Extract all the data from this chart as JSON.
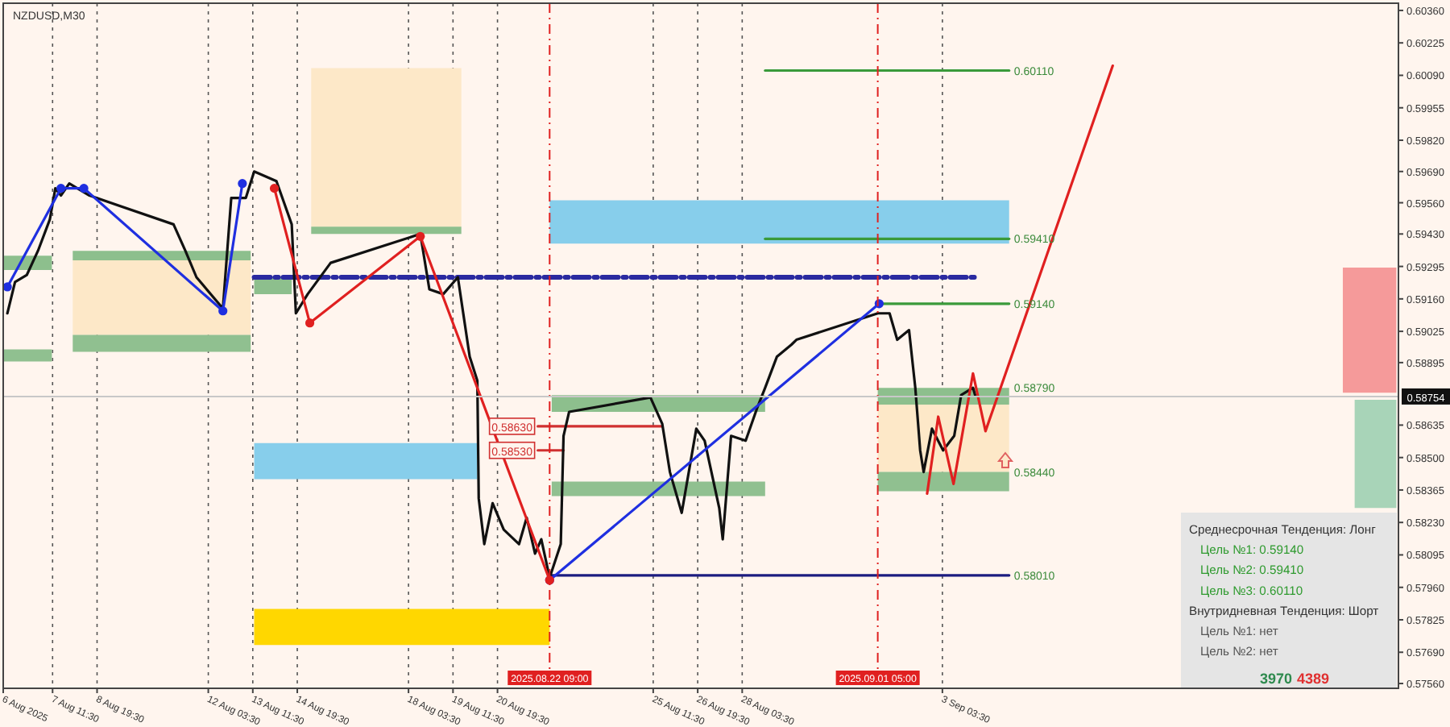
{
  "chart_data": {
    "type": "line",
    "title": "NZDUSD,M30",
    "xlim": [
      "2025-08-06T00:00",
      "2025-09-16T19:30"
    ],
    "ylim": [
      0.5754,
      0.6039
    ],
    "xticks": [
      {
        "value": "2025-08-06T00:00",
        "label": "6 Aug 2025"
      },
      {
        "value": "2025-08-07T11:30",
        "label": "7 Aug 11:30"
      },
      {
        "value": "2025-08-08T19:30",
        "label": "8 Aug 19:30"
      },
      {
        "value": "2025-08-12T03:30",
        "label": "12 Aug 03:30"
      },
      {
        "value": "2025-08-13T11:30",
        "label": "13 Aug 11:30"
      },
      {
        "value": "2025-08-14T19:30",
        "label": "14 Aug 19:30"
      },
      {
        "value": "2025-08-18T03:30",
        "label": "18 Aug 03:30"
      },
      {
        "value": "2025-08-19T11:30",
        "label": "19 Aug 11:30"
      },
      {
        "value": "2025-08-20T19:30",
        "label": "20 Aug 19:30"
      },
      {
        "value": "2025-08-25T11:30",
        "label": "25 Aug 11:30"
      },
      {
        "value": "2025-08-26T19:30",
        "label": "26 Aug 19:30"
      },
      {
        "value": "2025-08-28T03:30",
        "label": "28 Aug 03:30"
      },
      {
        "value": "2025-09-03T03:30",
        "label": "3 Sep 03:30"
      }
    ],
    "yticks": [
      {
        "value": 0.6036,
        "label": "0.60360"
      },
      {
        "value": 0.60225,
        "label": "0.60225"
      },
      {
        "value": 0.6009,
        "label": "0.60090"
      },
      {
        "value": 0.59955,
        "label": "0.59955"
      },
      {
        "value": 0.5982,
        "label": "0.59820"
      },
      {
        "value": 0.5969,
        "label": "0.59690"
      },
      {
        "value": 0.5956,
        "label": "0.59560"
      },
      {
        "value": 0.5943,
        "label": "0.59430"
      },
      {
        "value": 0.59295,
        "label": "0.59295"
      },
      {
        "value": 0.5916,
        "label": "0.59160"
      },
      {
        "value": 0.59025,
        "label": "0.59025"
      },
      {
        "value": 0.58895,
        "label": "0.58895"
      },
      {
        "value": 0.58635,
        "label": "0.58635"
      },
      {
        "value": 0.585,
        "label": "0.58500"
      },
      {
        "value": 0.58365,
        "label": "0.58365"
      },
      {
        "value": 0.5823,
        "label": "0.58230"
      },
      {
        "value": 0.58095,
        "label": "0.58095"
      },
      {
        "value": 0.5796,
        "label": "0.57960"
      },
      {
        "value": 0.57825,
        "label": "0.57825"
      },
      {
        "value": 0.5769,
        "label": "0.57690"
      },
      {
        "value": 0.5756,
        "label": "0.57560"
      }
    ],
    "grid": "x",
    "series": [
      {
        "type": "area",
        "color": "#fde8c8",
        "x": [
          "2025-08-08T02:00",
          "2025-08-13T10:00"
        ],
        "values": [
          null,
          null
        ],
        "lower": [
          0.5901,
          0.5901
        ],
        "upper": [
          0.5932,
          0.5932
        ]
      },
      {
        "type": "area",
        "color": "#fde8c8",
        "x": [
          "2025-08-15T05:30",
          "2025-08-19T17:30"
        ],
        "values": [
          null,
          null
        ],
        "lower": [
          0.5946,
          0.5946
        ],
        "upper": [
          0.6012,
          0.6012
        ]
      },
      {
        "type": "area",
        "color": "#fde8c8",
        "x": [
          "2025-09-01T05:00",
          "2025-09-05T03:30"
        ],
        "values": [
          null,
          null
        ],
        "lower": [
          0.5844,
          0.5844
        ],
        "upper": [
          0.5872,
          0.5872
        ]
      },
      {
        "type": "area",
        "color": "#8dbf8d",
        "x": [
          "2025-08-08T02:00",
          "2025-08-13T10:00"
        ],
        "values": [
          null,
          null
        ],
        "lower": [
          0.5932,
          0.5932
        ],
        "upper": [
          0.5936,
          0.5936
        ]
      },
      {
        "type": "area",
        "color": "#8dbf8d",
        "x": [
          "2025-08-13T12:30",
          "2025-08-14T15:30"
        ],
        "values": [
          null,
          null
        ],
        "lower": [
          0.5918,
          0.5918
        ],
        "upper": [
          0.5925,
          0.5925
        ]
      },
      {
        "type": "area",
        "color": "#8dbf8d",
        "x": [
          "2025-08-15T05:30",
          "2025-08-19T17:30"
        ],
        "values": [
          null,
          null
        ],
        "lower": [
          0.5943,
          0.5943
        ],
        "upper": [
          0.5946,
          0.5946
        ]
      },
      {
        "type": "area",
        "color": "#90c090",
        "x": [
          "2025-08-08T02:00",
          "2025-08-13T10:00"
        ],
        "values": [
          null,
          null
        ],
        "lower": [
          0.5894,
          0.5894
        ],
        "upper": [
          0.5901,
          0.5901
        ]
      },
      {
        "type": "area",
        "color": "#8dbf8d",
        "x": [
          "2025-08-06T00:00",
          "2025-08-07T11:00"
        ],
        "values": [
          null,
          null
        ],
        "lower": [
          0.5928,
          0.5928
        ],
        "upper": [
          0.5934,
          0.5934
        ]
      },
      {
        "type": "area",
        "color": "#90c090",
        "x": [
          "2025-08-06T00:00",
          "2025-08-07T11:00"
        ],
        "values": [
          null,
          null
        ],
        "lower": [
          0.589,
          0.589
        ],
        "upper": [
          0.5895,
          0.5895
        ]
      },
      {
        "type": "area",
        "color": "#8dbf8d",
        "x": [
          "2025-08-22T10:30",
          "2025-08-28T20:00"
        ],
        "values": [
          null,
          null
        ],
        "lower": [
          0.5869,
          0.5869
        ],
        "upper": [
          0.5876,
          0.5876
        ]
      },
      {
        "type": "area",
        "color": "#90c090",
        "x": [
          "2025-08-22T10:30",
          "2025-08-28T20:00"
        ],
        "values": [
          null,
          null
        ],
        "lower": [
          0.5834,
          0.5834
        ],
        "upper": [
          0.584,
          0.584
        ]
      },
      {
        "type": "area",
        "color": "#8dbf8d",
        "x": [
          "2025-09-01T05:00",
          "2025-09-05T03:30"
        ],
        "values": [
          null,
          null
        ],
        "lower": [
          0.5872,
          0.5872
        ],
        "upper": [
          0.5879,
          0.5879
        ]
      },
      {
        "type": "area",
        "color": "#90c090",
        "x": [
          "2025-09-01T05:00",
          "2025-09-05T03:30"
        ],
        "values": [
          null,
          null
        ],
        "lower": [
          0.5836,
          0.5836
        ],
        "upper": [
          0.5844,
          0.5844
        ]
      },
      {
        "type": "area",
        "color": "#87ceeb",
        "x": [
          "2025-08-22T09:00",
          "2025-09-05T03:30"
        ],
        "values": [
          null,
          null
        ],
        "lower": [
          0.5939,
          0.5939
        ],
        "upper": [
          0.5957,
          0.5957
        ]
      },
      {
        "type": "area",
        "color": "#87ceeb",
        "x": [
          "2025-08-13T12:30",
          "2025-08-20T05:00"
        ],
        "values": [
          null,
          null
        ],
        "lower": [
          0.5841,
          0.5841
        ],
        "upper": [
          0.5856,
          0.5856
        ]
      },
      {
        "type": "area",
        "color": "#ffd700",
        "x": [
          "2025-08-13T12:30",
          "2025-08-22T09:00"
        ],
        "values": [
          null,
          null
        ],
        "lower": [
          0.5772,
          0.5772
        ],
        "upper": [
          0.5787,
          0.5787
        ]
      },
      {
        "type": "area",
        "color": "#f59a9a",
        "x": [
          "2025-09-15T03:30",
          "2025-09-16T18:00"
        ],
        "values": [
          null,
          null
        ],
        "lower": [
          0.5877,
          0.5877
        ],
        "upper": [
          0.5929,
          0.5929
        ]
      },
      {
        "type": "area",
        "color": "#a8d4b8",
        "x": [
          "2025-09-15T12:00",
          "2025-09-16T18:00"
        ],
        "values": [
          null,
          null
        ],
        "lower": [
          0.5829,
          0.5829
        ],
        "upper": [
          0.5874,
          0.5874
        ]
      },
      {
        "color": "#3a9a3a",
        "x": [
          "2025-08-28T20:00",
          "2025-09-05T03:30"
        ],
        "values": [
          0.6011,
          0.6011
        ]
      },
      {
        "color": "#3a9a3a",
        "x": [
          "2025-08-28T20:00",
          "2025-09-05T03:30"
        ],
        "values": [
          0.5941,
          0.5941
        ]
      },
      {
        "color": "#3a9a3a",
        "x": [
          "2025-09-01T06:00",
          "2025-09-05T03:30"
        ],
        "values": [
          0.5914,
          0.5914
        ]
      },
      {
        "color": "#1c1c80",
        "x": [
          "2025-08-22T09:00",
          "2025-09-05T03:30"
        ],
        "values": [
          0.5801,
          0.5801
        ]
      },
      {
        "color": "#d03030",
        "x": [
          "2025-08-22T00:30",
          "2025-08-25T18:00"
        ],
        "values": [
          0.5863,
          0.5863
        ]
      },
      {
        "color": "#d03030",
        "x": [
          "2025-08-22T00:30",
          "2025-08-22T19:00"
        ],
        "values": [
          0.5853,
          0.5853
        ]
      },
      {
        "color": "#2a2aa0",
        "line_style": "dashed",
        "x": [
          "2025-08-13T12:30",
          "2025-09-04T03:00"
        ],
        "values": [
          0.5925,
          0.5925
        ]
      },
      {
        "color": "#111111",
        "x": [
          "2025-08-06T03:00",
          "2025-08-06T08:30",
          "2025-08-06T17:00",
          "2025-08-07T01:00",
          "2025-08-07T09:30",
          "2025-08-07T13:30",
          "2025-08-07T17:30",
          "2025-08-07T23:30",
          "2025-08-08T14:00",
          "2025-08-11T02:30",
          "2025-08-11T11:00",
          "2025-08-11T19:00",
          "2025-08-12T14:00",
          "2025-08-12T20:00",
          "2025-08-13T06:30",
          "2025-08-13T12:30",
          "2025-08-14T04:30",
          "2025-08-14T15:30",
          "2025-08-14T18:30",
          "2025-08-15T03:00",
          "2025-08-15T19:30",
          "2025-08-18T12:00",
          "2025-08-18T18:30",
          "2025-08-19T04:30",
          "2025-08-19T15:00",
          "2025-08-19T23:30",
          "2025-08-20T05:00",
          "2025-08-20T06:00",
          "2025-08-20T10:00",
          "2025-08-20T16:00",
          "2025-08-21T00:00",
          "2025-08-21T11:00",
          "2025-08-21T16:30",
          "2025-08-21T22:30",
          "2025-08-22T03:00",
          "2025-08-22T09:00",
          "2025-08-22T17:00",
          "2025-08-22T19:00",
          "2025-08-22T23:00",
          "2025-08-25T09:30",
          "2025-08-25T18:00",
          "2025-08-25T23:30",
          "2025-08-26T08:00",
          "2025-08-26T18:30",
          "2025-08-27T00:30",
          "2025-08-27T11:00",
          "2025-08-27T13:30",
          "2025-08-27T19:30",
          "2025-08-28T06:00",
          "2025-08-28T14:30",
          "2025-08-28T20:00",
          "2025-08-29T04:30",
          "2025-08-29T15:00",
          "2025-08-29T18:30",
          "2025-09-01T05:00",
          "2025-09-01T13:30",
          "2025-09-01T19:00",
          "2025-09-02T03:30",
          "2025-09-02T08:00",
          "2025-09-02T11:30",
          "2025-09-02T14:00",
          "2025-09-02T20:00",
          "2025-09-03T04:00",
          "2025-09-03T12:00",
          "2025-09-03T17:00",
          "2025-09-04T01:30",
          "2025-09-04T03:00"
        ],
        "values": [
          0.591,
          0.5923,
          0.5926,
          0.5936,
          0.5949,
          0.5962,
          0.5959,
          0.5964,
          0.5959,
          0.5947,
          0.5936,
          0.5925,
          0.5912,
          0.5958,
          0.5958,
          0.5969,
          0.5965,
          0.5947,
          0.591,
          0.5918,
          0.5931,
          0.5943,
          0.592,
          0.5918,
          0.5925,
          0.5892,
          0.5882,
          0.5833,
          0.5814,
          0.5831,
          0.582,
          0.5814,
          0.5825,
          0.581,
          0.5816,
          0.58,
          0.5814,
          0.5859,
          0.5869,
          0.5875,
          0.5864,
          0.5844,
          0.5827,
          0.5862,
          0.5857,
          0.5829,
          0.5816,
          0.5859,
          0.5857,
          0.5871,
          0.5879,
          0.5892,
          0.5897,
          0.5899,
          0.591,
          0.591,
          0.5899,
          0.5903,
          0.5879,
          0.5853,
          0.5844,
          0.5862,
          0.5853,
          0.5859,
          0.5876,
          0.5879,
          0.5876
        ]
      },
      {
        "color": "#1f2fe0",
        "marker": "circle",
        "x": [
          "2025-08-06T03:00",
          "2025-08-07T17:30",
          "2025-08-08T10:00",
          "2025-08-12T14:00",
          "2025-08-13T04:00"
        ],
        "values": [
          0.5921,
          0.5962,
          0.5962,
          0.5911,
          0.5964
        ]
      },
      {
        "color": "#1f2fe0",
        "marker": "circle",
        "x": [
          "2025-08-22T09:00",
          "2025-09-01T06:00"
        ],
        "values": [
          0.5799,
          0.5914
        ]
      },
      {
        "color": "#e02020",
        "marker": "circle",
        "x": [
          "2025-08-14T03:00",
          "2025-08-15T04:30",
          "2025-08-18T12:00",
          "2025-08-22T09:00"
        ],
        "values": [
          0.5962,
          0.5906,
          0.5942,
          0.5799
        ]
      },
      {
        "color": "#e02020",
        "x": [
          "2025-09-02T16:30",
          "2025-09-03T00:30",
          "2025-09-03T11:30",
          "2025-09-04T01:30",
          "2025-09-04T10:30",
          "2025-09-08T06:00"
        ],
        "values": [
          0.5835,
          0.5867,
          0.5839,
          0.5885,
          0.5861,
          0.6013
        ]
      }
    ],
    "ref_lines": [
      {
        "axis": "x",
        "value": "2025-08-22T09:00",
        "label": "2025.08.22 09:00",
        "color": "#e02020",
        "line_style": "dashed"
      },
      {
        "axis": "x",
        "value": "2025-09-01T05:00",
        "label": "2025.09.01 05:00",
        "color": "#e02020",
        "line_style": "dashed"
      },
      {
        "axis": "y",
        "value": 0.58754,
        "label": "0.58754",
        "color": "#c8c8c8",
        "line_style": "solid"
      }
    ],
    "annotations": [
      {
        "text": "0.60110",
        "x": "2025-09-05T03:30",
        "y": 0.6011
      },
      {
        "text": "0.59410",
        "x": "2025-09-05T03:30",
        "y": 0.5941
      },
      {
        "text": "0.59140",
        "x": "2025-09-05T03:30",
        "y": 0.5914
      },
      {
        "text": "0.58790",
        "x": "2025-09-05T03:30",
        "y": 0.5879
      },
      {
        "text": "0.58440",
        "x": "2025-09-05T03:30",
        "y": 0.5844
      },
      {
        "text": "0.58010",
        "x": "2025-09-05T03:30",
        "y": 0.5801
      },
      {
        "text": "0.58630",
        "x": "2025-08-22T00:30",
        "y": 0.5863
      },
      {
        "text": "0.58530",
        "x": "2025-08-22T00:30",
        "y": 0.5853
      },
      "Среднесрочная Тенденция: Лонг",
      "Цель №1: 0.59140",
      "Цель №2: 0.59410",
      "Цель №3: 0.60110",
      "Внутридневная Тенденция: Шорт",
      "Цель №1: нет",
      "Цель №2: нет",
      "3970",
      "4389"
    ]
  }
}
